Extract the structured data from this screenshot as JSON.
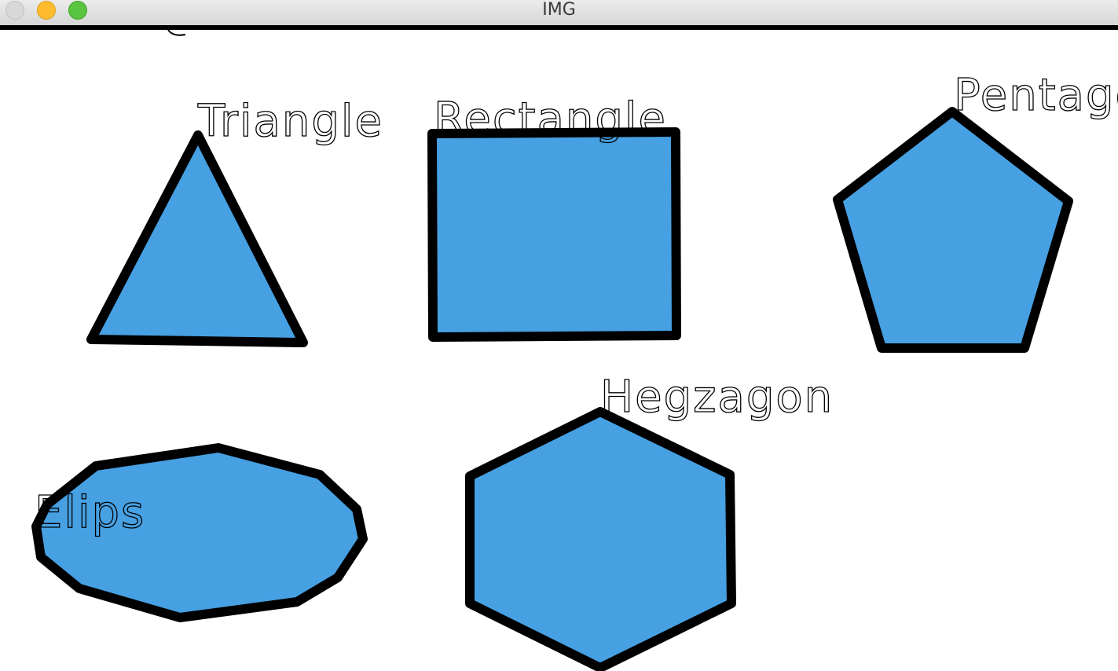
{
  "window": {
    "title": "IMG"
  },
  "colors": {
    "shape_fill": "#46a0e2",
    "shape_stroke": "#000000",
    "label_color": "#000000",
    "background": "#ffffff"
  },
  "shapes": [
    {
      "name": "triangle",
      "label": "Triangle"
    },
    {
      "name": "rectangle",
      "label": "Rectangle"
    },
    {
      "name": "pentagon",
      "label": "Pentagon"
    },
    {
      "name": "ellipse",
      "label": "Elips"
    },
    {
      "name": "hexagon",
      "label": "Hegzagon"
    }
  ]
}
